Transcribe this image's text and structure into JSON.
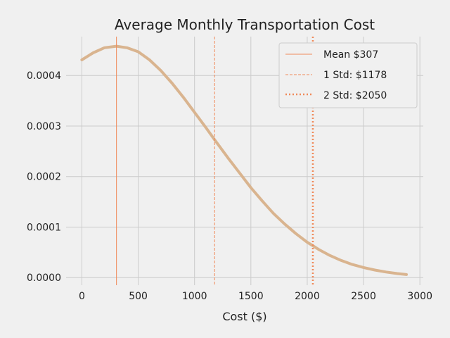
{
  "chart_data": {
    "type": "line",
    "title": "Average Monthly Transportation Cost",
    "xlabel": "Cost ($)",
    "ylabel": "",
    "xlim": [
      -140,
      3030
    ],
    "ylim": [
      -1.5e-05,
      0.000477
    ],
    "xticks": [
      0,
      500,
      1000,
      1500,
      2000,
      2500,
      3000
    ],
    "xtick_labels": [
      "0",
      "500",
      "1000",
      "1500",
      "2000",
      "2500",
      "3000"
    ],
    "yticks": [
      0.0,
      0.0001,
      0.0002,
      0.0003,
      0.0004
    ],
    "ytick_labels": [
      "0.0000",
      "0.0001",
      "0.0002",
      "0.0003",
      "0.0004"
    ],
    "grid": true,
    "legend_position": "top-right",
    "series": [
      {
        "x": [
          0,
          100,
          200,
          307,
          400,
          500,
          600,
          700,
          800,
          900,
          1000,
          1100,
          1178,
          1300,
          1400,
          1500,
          1600,
          1700,
          1800,
          1900,
          2000,
          2050,
          2100,
          2200,
          2300,
          2400,
          2500,
          2600,
          2700,
          2800,
          2880
        ],
        "y": [
          0.000431,
          0.000445,
          0.000455,
          0.000458,
          0.000455,
          0.000447,
          0.000431,
          0.00041,
          0.000385,
          0.000357,
          0.000327,
          0.000297,
          0.000273,
          0.000236,
          0.000207,
          0.000178,
          0.000152,
          0.000127,
          0.000106,
          8.7e-05,
          7e-05,
          6.3e-05,
          5.6e-05,
          4.4e-05,
          3.4e-05,
          2.6e-05,
          2e-05,
          1.5e-05,
          1.1e-05,
          8e-06,
          6e-06
        ],
        "color": "#d9b48f"
      }
    ],
    "vlines": [
      {
        "name": "Mean $307",
        "x": 307,
        "color": "#f08a5a",
        "style": "solid"
      },
      {
        "name": "1 Std: $1178",
        "x": 1178,
        "color": "#f08a5a",
        "style": "dashed"
      },
      {
        "name": "2 Std: $2050",
        "x": 2050,
        "color": "#f08a5a",
        "style": "dotted"
      }
    ]
  }
}
